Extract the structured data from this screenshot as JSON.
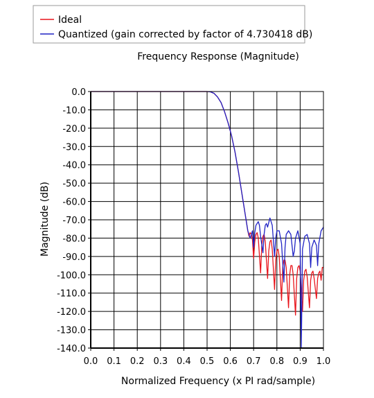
{
  "chart_data": {
    "type": "line",
    "title": "Frequency Response (Magnitude)",
    "xlabel": "Normalized Frequency (x PI rad/sample)",
    "ylabel": "Magnitude (dB)",
    "xlim": [
      0,
      1.0
    ],
    "ylim": [
      -140,
      0
    ],
    "x_ticks": [
      "0.0",
      "0.1",
      "0.2",
      "0.3",
      "0.4",
      "0.5",
      "0.6",
      "0.7",
      "0.8",
      "0.9",
      "1.0"
    ],
    "y_ticks": [
      "0.0",
      "-10.0",
      "-20.0",
      "-30.0",
      "-40.0",
      "-50.0",
      "-60.0",
      "-70.0",
      "-80.0",
      "-90.0",
      "-100.0",
      "-110.0",
      "-120.0",
      "-130.0",
      "-140.0"
    ],
    "grid": true,
    "legend_position": "top-left",
    "series": [
      {
        "name": "Ideal",
        "color": "#e8141b",
        "x": [
          0,
          0.5,
          0.515,
          0.53,
          0.545,
          0.56,
          0.575,
          0.59,
          0.605,
          0.62,
          0.635,
          0.65,
          0.665,
          0.675,
          0.68,
          0.685,
          0.69,
          0.695,
          0.7,
          0.705,
          0.71,
          0.715,
          0.72,
          0.73,
          0.735,
          0.74,
          0.745,
          0.75,
          0.76,
          0.765,
          0.77,
          0.775,
          0.78,
          0.79,
          0.795,
          0.8,
          0.805,
          0.81,
          0.82,
          0.825,
          0.83,
          0.835,
          0.84,
          0.85,
          0.855,
          0.86,
          0.865,
          0.87,
          0.88,
          0.885,
          0.89,
          0.895,
          0.9,
          0.91,
          0.915,
          0.92,
          0.925,
          0.93,
          0.94,
          0.945,
          0.95,
          0.955,
          0.96,
          0.97,
          0.975,
          0.98,
          0.985,
          0.99,
          0.995,
          1.0
        ],
        "y": [
          0,
          0,
          -0.2,
          -1,
          -3,
          -6,
          -11,
          -17,
          -24,
          -33,
          -44,
          -56,
          -68,
          -76,
          -79,
          -77,
          -78,
          -81,
          -91,
          -82,
          -78,
          -77,
          -80,
          -99,
          -84,
          -79,
          -78,
          -82,
          -102,
          -87,
          -82,
          -81,
          -86,
          -108,
          -92,
          -87,
          -86,
          -90,
          -114,
          -96,
          -92,
          -92,
          -96,
          -118,
          -100,
          -95,
          -95,
          -100,
          -122,
          -102,
          -96,
          -95,
          -98,
          -120,
          -103,
          -98,
          -97,
          -101,
          -118,
          -103,
          -99,
          -98,
          -102,
          -113,
          -102,
          -99,
          -98,
          -103,
          -96,
          -96
        ]
      },
      {
        "name": "Quantized (gain corrected by factor of 4.730418 dB)",
        "color": "#1f22c4",
        "x": [
          0,
          0.5,
          0.515,
          0.53,
          0.545,
          0.56,
          0.575,
          0.59,
          0.605,
          0.62,
          0.635,
          0.65,
          0.665,
          0.675,
          0.68,
          0.685,
          0.69,
          0.695,
          0.7,
          0.705,
          0.71,
          0.72,
          0.725,
          0.73,
          0.74,
          0.745,
          0.75,
          0.755,
          0.76,
          0.77,
          0.78,
          0.79,
          0.795,
          0.8,
          0.81,
          0.82,
          0.83,
          0.835,
          0.84,
          0.85,
          0.86,
          0.87,
          0.875,
          0.88,
          0.89,
          0.9,
          0.905,
          0.91,
          0.92,
          0.93,
          0.94,
          0.945,
          0.95,
          0.96,
          0.97,
          0.975,
          0.98,
          0.99,
          1.0
        ],
        "y": [
          0,
          0,
          -0.2,
          -1,
          -3,
          -6,
          -11,
          -17,
          -24,
          -33,
          -44,
          -56,
          -68,
          -76,
          -78,
          -80,
          -78,
          -76,
          -85,
          -77,
          -73,
          -71,
          -73,
          -79,
          -88,
          -78,
          -73,
          -72,
          -74,
          -69,
          -73,
          -90,
          -80,
          -76,
          -76,
          -83,
          -104,
          -85,
          -78,
          -76,
          -78,
          -90,
          -87,
          -80,
          -76,
          -83,
          -140,
          -86,
          -79,
          -78,
          -83,
          -96,
          -85,
          -81,
          -84,
          -95,
          -83,
          -76,
          -74
        ]
      }
    ]
  }
}
